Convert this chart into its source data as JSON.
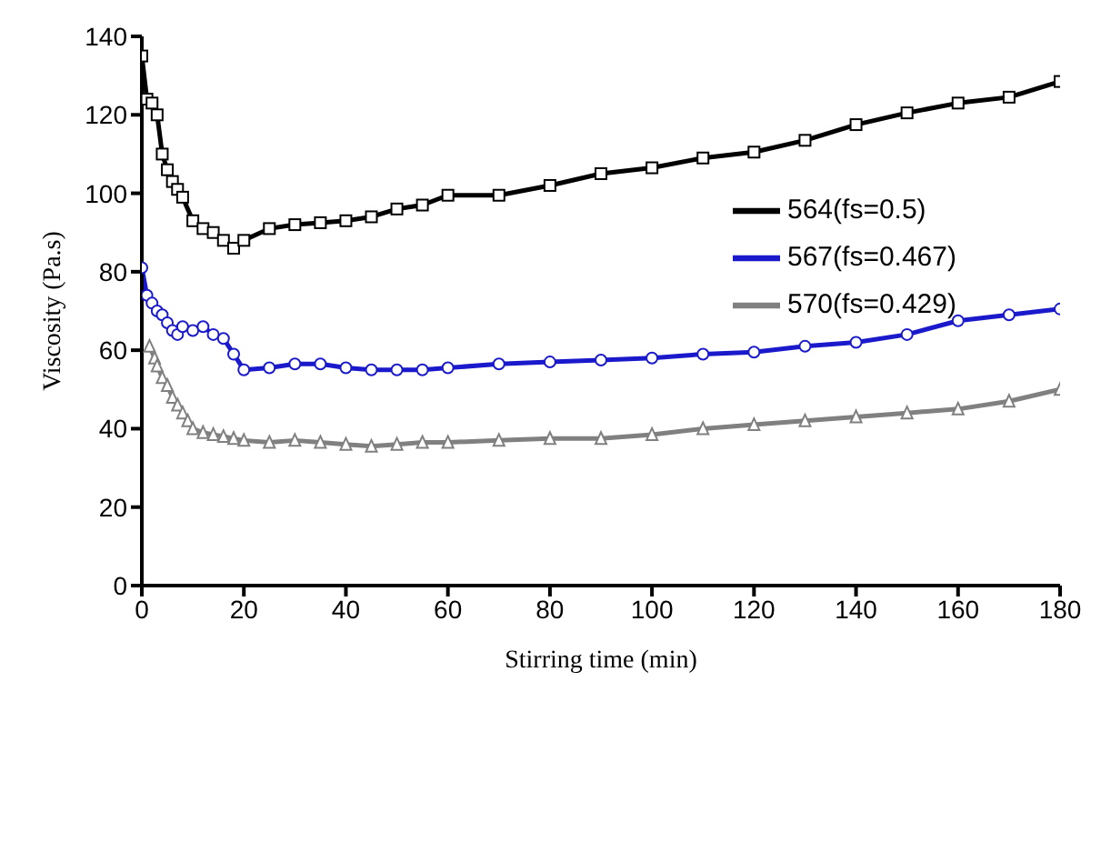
{
  "chart_data": {
    "type": "line",
    "xlabel": "Stirring time (min)",
    "ylabel": "Viscosity (Pa.s)",
    "xlim": [
      0,
      180
    ],
    "xticks": [
      0,
      20,
      40,
      60,
      80,
      100,
      120,
      140,
      160,
      180
    ],
    "ylim": [
      0,
      140
    ],
    "yticks": [
      0,
      20,
      40,
      60,
      80,
      100,
      120,
      140
    ],
    "legend": "right",
    "grid": false,
    "x": [
      0,
      1,
      2,
      3,
      4,
      5,
      6,
      7,
      8,
      10,
      12,
      14,
      16,
      18,
      20,
      25,
      30,
      35,
      40,
      45,
      50,
      55,
      60,
      70,
      80,
      90,
      100,
      110,
      120,
      130,
      140,
      150,
      160,
      170,
      180
    ],
    "series": [
      {
        "name": "564(fs=0.5)",
        "color": "#000000",
        "marker": "square",
        "values": [
          135,
          124,
          123,
          120,
          110,
          106,
          103,
          101,
          99,
          93,
          91,
          90,
          88,
          86,
          88,
          91,
          92,
          92.5,
          93,
          94,
          96,
          97,
          99.5,
          99.5,
          102,
          105,
          106.5,
          109,
          110.5,
          113.5,
          117.5,
          120.5,
          123,
          124.5,
          128.5
        ]
      },
      {
        "name": "567(fs=0.467)",
        "color": "#1a1acc",
        "marker": "circle",
        "values": [
          81,
          74,
          72,
          70,
          69,
          67,
          65,
          64,
          66,
          65,
          66,
          64,
          63,
          59,
          55,
          55.5,
          56.5,
          56.5,
          55.5,
          55,
          55,
          55,
          55.5,
          56.5,
          57,
          57.5,
          58,
          59,
          59.5,
          61,
          62,
          64,
          67.5,
          69,
          70.5
        ]
      },
      {
        "name": "570(fs=0.429)",
        "color": "#808080",
        "marker": "triangle",
        "x": [
          1.5,
          2.5,
          3,
          4,
          5,
          6,
          7,
          8,
          9,
          10,
          12,
          14,
          16,
          18,
          20,
          25,
          30,
          35,
          40,
          45,
          50,
          55,
          60,
          70,
          80,
          90,
          100,
          110,
          120,
          130,
          140,
          150,
          160,
          170,
          180
        ],
        "values": [
          61,
          58,
          56,
          53,
          51,
          48,
          46,
          44,
          42,
          40,
          39,
          38.5,
          38,
          37.5,
          37,
          36.5,
          37,
          36.5,
          36,
          35.5,
          36,
          36.5,
          36.5,
          37,
          37.5,
          37.5,
          38.5,
          40,
          41,
          42,
          43,
          44,
          45,
          47,
          50
        ]
      }
    ]
  }
}
